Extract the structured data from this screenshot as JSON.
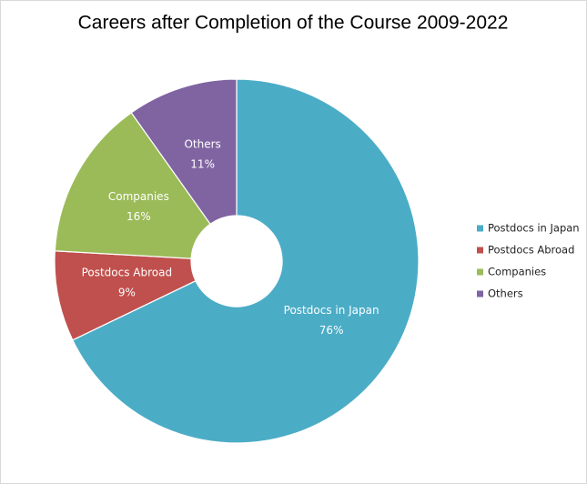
{
  "chart_data": {
    "type": "donut",
    "title": "Careers after Completion of the Course 2009-2022",
    "categories": [
      "Postdocs in Japan",
      "Postdocs Abroad",
      "Companies",
      "Others"
    ],
    "values": [
      76,
      9,
      16,
      11
    ],
    "value_labels": [
      "76%",
      "9%",
      "16%",
      "11%"
    ],
    "colors": [
      "#4bacc6",
      "#c0504d",
      "#9bbb59",
      "#8064a2"
    ],
    "legend": "right"
  }
}
